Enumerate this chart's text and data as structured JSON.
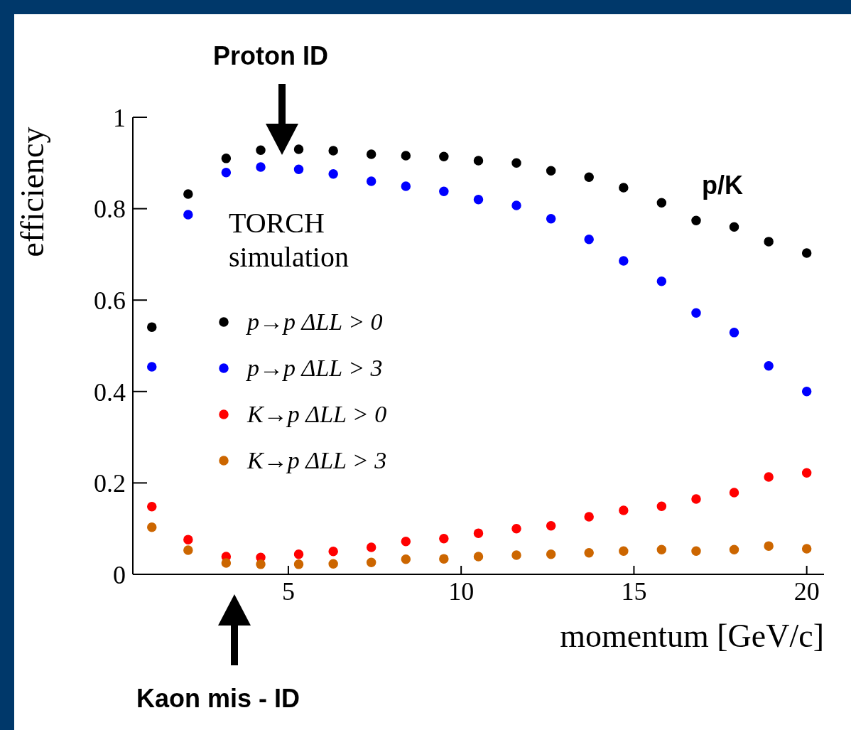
{
  "chart_data": {
    "type": "scatter",
    "xlabel": "momentum [GeV/c]",
    "ylabel": "efficiency",
    "x": [
      1.05,
      2.1,
      3.2,
      4.2,
      5.3,
      6.3,
      7.4,
      8.4,
      9.5,
      10.5,
      11.6,
      12.6,
      13.7,
      14.7,
      15.8,
      16.8,
      17.9,
      18.9,
      20.0
    ],
    "xlim": [
      0.5,
      20.5
    ],
    "xticks": [
      5,
      10,
      15,
      20
    ],
    "ylim": [
      0,
      1
    ],
    "yticks": [
      0,
      0.2,
      0.4,
      0.6,
      0.8,
      1
    ],
    "marker": "circle",
    "legend": "left",
    "grid": false,
    "annotations": [
      "Proton ID",
      "Kaon mis - ID",
      "TORCH simulation",
      "p/K"
    ],
    "series": [
      {
        "name": "p→p  ΔLL > 0",
        "color": "#000000",
        "values": [
          0.541,
          0.832,
          0.91,
          0.928,
          0.93,
          0.927,
          0.919,
          0.916,
          0.914,
          0.905,
          0.9,
          0.883,
          0.869,
          0.846,
          0.813,
          0.774,
          0.76,
          0.728,
          0.703
        ]
      },
      {
        "name": "p→p  ΔLL > 3",
        "color": "#0000ff",
        "values": [
          0.454,
          0.787,
          0.879,
          0.891,
          0.886,
          0.876,
          0.86,
          0.849,
          0.838,
          0.82,
          0.807,
          0.778,
          0.733,
          0.686,
          0.641,
          0.572,
          0.529,
          0.456,
          0.4
        ]
      },
      {
        "name": "K→p  ΔLL > 0",
        "color": "#ff0000",
        "values": [
          0.148,
          0.076,
          0.039,
          0.037,
          0.044,
          0.05,
          0.059,
          0.072,
          0.078,
          0.09,
          0.1,
          0.106,
          0.126,
          0.14,
          0.149,
          0.165,
          0.179,
          0.213,
          0.222
        ]
      },
      {
        "name": "K→p  ΔLL > 3",
        "color": "#cc6600",
        "values": [
          0.103,
          0.053,
          0.025,
          0.022,
          0.022,
          0.023,
          0.026,
          0.033,
          0.034,
          0.039,
          0.042,
          0.044,
          0.047,
          0.051,
          0.054,
          0.051,
          0.054,
          0.062,
          0.056
        ]
      }
    ]
  }
}
